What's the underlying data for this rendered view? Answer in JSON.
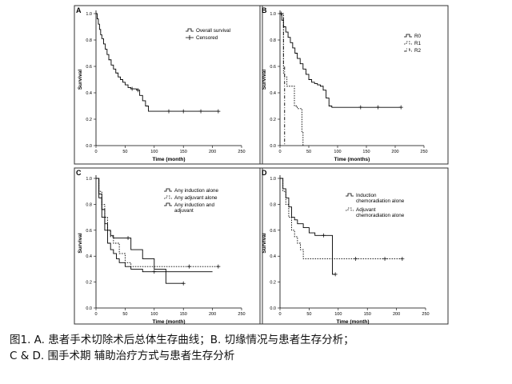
{
  "caption": {
    "line1": "图1. A. 患者手术切除术后总体生存曲线；B. 切缘情况与患者生存分析；",
    "line2": "C & D. 围手术期 辅助治疗方式与患者生存分析"
  },
  "chart_data": [
    {
      "type": "line",
      "panel": "A",
      "xlabel": "Time (month)",
      "ylabel": "Survival",
      "xlim": [
        0,
        250
      ],
      "ylim": [
        0,
        1
      ],
      "xticks": [
        0,
        50,
        100,
        150,
        200,
        250
      ],
      "yticks": [
        0.0,
        0.2,
        0.4,
        0.6,
        0.8,
        1.0
      ],
      "legend": {
        "placement": "top-right",
        "entries": [
          "Overall survival",
          "Censored"
        ]
      },
      "series": [
        {
          "name": "Overall survival",
          "style": "solid",
          "x": [
            0,
            2,
            4,
            6,
            8,
            10,
            13,
            16,
            19,
            22,
            26,
            30,
            34,
            38,
            42,
            46,
            50,
            55,
            60,
            65,
            70,
            75,
            80,
            85,
            90,
            100,
            115,
            150,
            180,
            210
          ],
          "y": [
            1.0,
            0.96,
            0.92,
            0.88,
            0.84,
            0.81,
            0.77,
            0.73,
            0.69,
            0.65,
            0.61,
            0.58,
            0.55,
            0.52,
            0.5,
            0.48,
            0.46,
            0.44,
            0.43,
            0.43,
            0.42,
            0.38,
            0.34,
            0.3,
            0.26,
            0.26,
            0.26,
            0.26,
            0.26,
            0.26
          ]
        }
      ],
      "censored": [
        {
          "x": 62,
          "y": 0.43
        },
        {
          "x": 72,
          "y": 0.42
        },
        {
          "x": 125,
          "y": 0.26
        },
        {
          "x": 150,
          "y": 0.26
        },
        {
          "x": 180,
          "y": 0.26
        },
        {
          "x": 210,
          "y": 0.26
        }
      ]
    },
    {
      "type": "line",
      "panel": "B",
      "xlabel": "Time (months)",
      "ylabel": "Survival",
      "xlim": [
        0,
        250
      ],
      "ylim": [
        0,
        1
      ],
      "xticks": [
        0,
        50,
        100,
        150,
        200,
        250
      ],
      "yticks": [
        0.0,
        0.2,
        0.4,
        0.6,
        0.8,
        1.0
      ],
      "legend": {
        "placement": "top-right",
        "entries": [
          "R0",
          "R1",
          "R2"
        ]
      },
      "series": [
        {
          "name": "R0",
          "style": "solid",
          "x": [
            0,
            3,
            6,
            10,
            14,
            18,
            22,
            26,
            30,
            35,
            40,
            45,
            50,
            55,
            60,
            65,
            70,
            75,
            80,
            85,
            90,
            100,
            150,
            200,
            210
          ],
          "y": [
            1.0,
            0.95,
            0.9,
            0.86,
            0.82,
            0.78,
            0.74,
            0.7,
            0.66,
            0.62,
            0.58,
            0.54,
            0.5,
            0.48,
            0.47,
            0.46,
            0.45,
            0.42,
            0.36,
            0.3,
            0.29,
            0.29,
            0.29,
            0.29,
            0.29
          ]
        },
        {
          "name": "R1",
          "style": "dotted",
          "x": [
            0,
            6,
            8,
            12,
            18,
            25,
            30,
            35,
            38,
            40
          ],
          "y": [
            1.0,
            0.55,
            0.52,
            0.45,
            0.45,
            0.3,
            0.28,
            0.28,
            0.1,
            0.0
          ]
        },
        {
          "name": "R2",
          "style": "dashdot",
          "x": [
            0,
            4,
            6,
            8
          ],
          "y": [
            1.0,
            1.0,
            0.6,
            0.0
          ]
        }
      ],
      "censored": [
        {
          "x": 2,
          "y": 1.0
        },
        {
          "x": 140,
          "y": 0.29
        },
        {
          "x": 170,
          "y": 0.29
        },
        {
          "x": 210,
          "y": 0.29
        }
      ]
    },
    {
      "type": "line",
      "panel": "C",
      "xlabel": "Time (month)",
      "ylabel": "Survival",
      "xlim": [
        0,
        250
      ],
      "ylim": [
        0,
        1
      ],
      "xticks": [
        0,
        50,
        100,
        150,
        200,
        250
      ],
      "yticks": [
        0.0,
        0.2,
        0.4,
        0.6,
        0.8,
        1.0
      ],
      "legend": {
        "placement": "top-right",
        "entries": [
          "Any induction alone",
          "Any adjuvant alone",
          "Any induction and adjuvant"
        ]
      },
      "series": [
        {
          "name": "Any induction alone",
          "style": "solid",
          "x": [
            0,
            5,
            10,
            15,
            20,
            25,
            30,
            40,
            50,
            60,
            70,
            80,
            90,
            100,
            120,
            150
          ],
          "y": [
            1.0,
            0.88,
            0.76,
            0.65,
            0.6,
            0.56,
            0.54,
            0.54,
            0.54,
            0.45,
            0.45,
            0.38,
            0.38,
            0.3,
            0.19,
            0.19
          ]
        },
        {
          "name": "Any adjuvant alone",
          "style": "dotted",
          "x": [
            0,
            5,
            10,
            15,
            20,
            25,
            30,
            40,
            50,
            60,
            70,
            80,
            100,
            150,
            210
          ],
          "y": [
            1.0,
            0.9,
            0.8,
            0.7,
            0.6,
            0.55,
            0.5,
            0.42,
            0.35,
            0.32,
            0.32,
            0.32,
            0.32,
            0.32,
            0.32
          ]
        },
        {
          "name": "Any induction and adjuvant",
          "style": "solid",
          "x": [
            0,
            5,
            10,
            15,
            20,
            25,
            30,
            35,
            40,
            50,
            60,
            70,
            80,
            100,
            150,
            200
          ],
          "y": [
            1.0,
            0.85,
            0.7,
            0.6,
            0.5,
            0.45,
            0.42,
            0.38,
            0.35,
            0.32,
            0.3,
            0.3,
            0.28,
            0.28,
            0.28,
            0.28
          ]
        }
      ],
      "censored": [
        {
          "x": 55,
          "y": 0.54
        },
        {
          "x": 150,
          "y": 0.19
        },
        {
          "x": 160,
          "y": 0.32
        },
        {
          "x": 210,
          "y": 0.32
        },
        {
          "x": 100,
          "y": 0.28
        }
      ]
    },
    {
      "type": "line",
      "panel": "D",
      "xlabel": "Time (month)",
      "ylabel": "Survival",
      "xlim": [
        0,
        250
      ],
      "ylim": [
        0,
        1
      ],
      "xticks": [
        0,
        50,
        100,
        150,
        200,
        250
      ],
      "yticks": [
        0.0,
        0.2,
        0.4,
        0.6,
        0.8,
        1.0
      ],
      "legend": {
        "placement": "top-right",
        "entries": [
          "Induction chemoradiation alone",
          "Adjuvant chemoradiation alone"
        ]
      },
      "series": [
        {
          "name": "Induction chemoradiation alone",
          "style": "solid",
          "x": [
            0,
            5,
            10,
            15,
            20,
            25,
            30,
            40,
            50,
            60,
            70,
            80,
            90,
            95
          ],
          "y": [
            1.0,
            0.92,
            0.85,
            0.78,
            0.7,
            0.68,
            0.65,
            0.62,
            0.58,
            0.56,
            0.56,
            0.56,
            0.26,
            0.26
          ]
        },
        {
          "name": "Adjuvant chemoradiation alone",
          "style": "dotted",
          "x": [
            0,
            5,
            10,
            15,
            20,
            25,
            30,
            35,
            40,
            60,
            100,
            150,
            200,
            210
          ],
          "y": [
            1.0,
            0.9,
            0.8,
            0.7,
            0.6,
            0.55,
            0.5,
            0.45,
            0.38,
            0.38,
            0.38,
            0.38,
            0.38,
            0.38
          ]
        }
      ],
      "censored": [
        {
          "x": 75,
          "y": 0.56
        },
        {
          "x": 95,
          "y": 0.26
        },
        {
          "x": 130,
          "y": 0.38
        },
        {
          "x": 180,
          "y": 0.38
        },
        {
          "x": 210,
          "y": 0.38
        }
      ]
    }
  ]
}
